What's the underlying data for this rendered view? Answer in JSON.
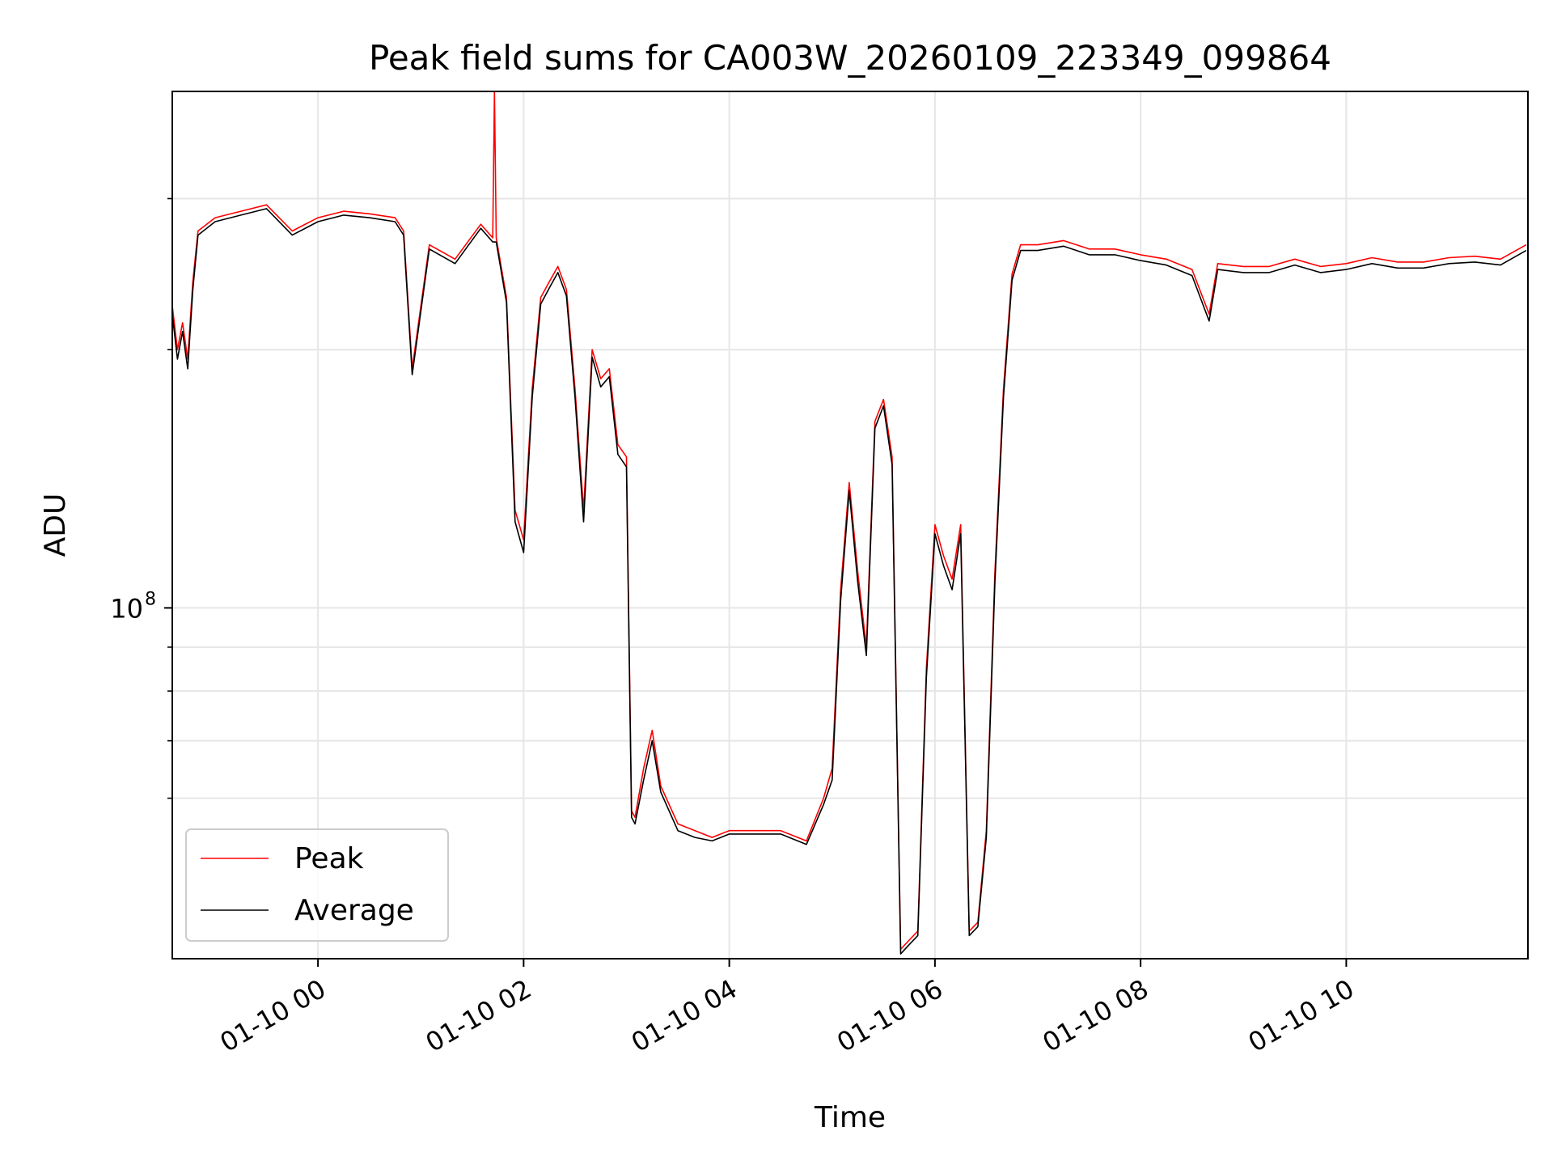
{
  "chart_data": {
    "type": "line",
    "title": "Peak field sums for CA003W_20260109_223349_099864",
    "xlabel": "Time",
    "ylabel": "ADU",
    "y_scale": "log",
    "ylim": [
      39000000,
      400000000
    ],
    "xlim": [
      "01-09 22:35",
      "01-10 11:46"
    ],
    "x_ticks": [
      "01-10 00",
      "01-10 02",
      "01-10 04",
      "01-10 06",
      "01-10 08",
      "01-10 10"
    ],
    "y_major_ticks": [
      {
        "value": 100000000,
        "label_base": "10",
        "label_exp": "8"
      }
    ],
    "y_minor_ticks": [
      60000000,
      70000000,
      80000000,
      90000000,
      200000000,
      300000000
    ],
    "grid": true,
    "legend_position": "lower-left",
    "series": [
      {
        "name": "Peak",
        "color": "#ff0000",
        "x": [
          "01-09 22:35",
          "01-09 22:38",
          "01-09 22:41",
          "01-09 22:44",
          "01-09 22:47",
          "01-09 22:50",
          "01-09 23:00",
          "01-09 23:15",
          "01-09 23:30",
          "01-09 23:45",
          "01-10 00:00",
          "01-10 00:15",
          "01-10 00:30",
          "01-10 00:45",
          "01-10 00:50",
          "01-10 00:55",
          "01-10 01:05",
          "01-10 01:20",
          "01-10 01:35",
          "01-10 01:42",
          "01-10 01:43",
          "01-10 01:44",
          "01-10 01:50",
          "01-10 01:55",
          "01-10 02:00",
          "01-10 02:05",
          "01-10 02:10",
          "01-10 02:15",
          "01-10 02:20",
          "01-10 02:25",
          "01-10 02:30",
          "01-10 02:35",
          "01-10 02:40",
          "01-10 02:45",
          "01-10 02:50",
          "01-10 02:55",
          "01-10 03:00",
          "01-10 03:03",
          "01-10 03:05",
          "01-10 03:10",
          "01-10 03:15",
          "01-10 03:20",
          "01-10 03:30",
          "01-10 03:40",
          "01-10 03:50",
          "01-10 04:00",
          "01-10 04:15",
          "01-10 04:30",
          "01-10 04:45",
          "01-10 04:55",
          "01-10 05:00",
          "01-10 05:05",
          "01-10 05:10",
          "01-10 05:15",
          "01-10 05:20",
          "01-10 05:25",
          "01-10 05:30",
          "01-10 05:35",
          "01-10 05:40",
          "01-10 05:45",
          "01-10 05:50",
          "01-10 05:55",
          "01-10 06:00",
          "01-10 06:05",
          "01-10 06:10",
          "01-10 06:15",
          "01-10 06:20",
          "01-10 06:25",
          "01-10 06:30",
          "01-10 06:35",
          "01-10 06:40",
          "01-10 06:45",
          "01-10 06:50",
          "01-10 07:00",
          "01-10 07:15",
          "01-10 07:30",
          "01-10 07:45",
          "01-10 08:00",
          "01-10 08:15",
          "01-10 08:30",
          "01-10 08:40",
          "01-10 08:45",
          "01-10 09:00",
          "01-10 09:15",
          "01-10 09:30",
          "01-10 09:45",
          "01-10 10:00",
          "01-10 10:15",
          "01-10 10:30",
          "01-10 10:45",
          "01-10 11:00",
          "01-10 11:15",
          "01-10 11:30",
          "01-10 11:45"
        ],
        "y": [
          225000000,
          200000000,
          215000000,
          195000000,
          240000000,
          275000000,
          285000000,
          290000000,
          295000000,
          275000000,
          285000000,
          290000000,
          288000000,
          285000000,
          275000000,
          190000000,
          265000000,
          255000000,
          280000000,
          270000000,
          400000000,
          270000000,
          230000000,
          130000000,
          120000000,
          180000000,
          230000000,
          240000000,
          250000000,
          235000000,
          180000000,
          130000000,
          200000000,
          185000000,
          190000000,
          155000000,
          150000000,
          58000000,
          57000000,
          65000000,
          72000000,
          62000000,
          56000000,
          55000000,
          54000000,
          55000000,
          55000000,
          55000000,
          53500000,
          60000000,
          65000000,
          105000000,
          140000000,
          110000000,
          90000000,
          165000000,
          175000000,
          150000000,
          40000000,
          41000000,
          42000000,
          85000000,
          125000000,
          115000000,
          108000000,
          125000000,
          42000000,
          43000000,
          55000000,
          110000000,
          180000000,
          245000000,
          265000000,
          265000000,
          268000000,
          262000000,
          262000000,
          258000000,
          255000000,
          248000000,
          220000000,
          252000000,
          250000000,
          250000000,
          255000000,
          250000000,
          252000000,
          256000000,
          253000000,
          253000000,
          256000000,
          257000000,
          255000000,
          265000000
        ]
      },
      {
        "name": "Average",
        "color": "#000000",
        "x": [
          "01-09 22:35",
          "01-09 22:38",
          "01-09 22:41",
          "01-09 22:44",
          "01-09 22:47",
          "01-09 22:50",
          "01-09 23:00",
          "01-09 23:15",
          "01-09 23:30",
          "01-09 23:45",
          "01-10 00:00",
          "01-10 00:15",
          "01-10 00:30",
          "01-10 00:45",
          "01-10 00:50",
          "01-10 00:55",
          "01-10 01:05",
          "01-10 01:20",
          "01-10 01:35",
          "01-10 01:42",
          "01-10 01:43",
          "01-10 01:44",
          "01-10 01:50",
          "01-10 01:55",
          "01-10 02:00",
          "01-10 02:05",
          "01-10 02:10",
          "01-10 02:15",
          "01-10 02:20",
          "01-10 02:25",
          "01-10 02:30",
          "01-10 02:35",
          "01-10 02:40",
          "01-10 02:45",
          "01-10 02:50",
          "01-10 02:55",
          "01-10 03:00",
          "01-10 03:03",
          "01-10 03:05",
          "01-10 03:10",
          "01-10 03:15",
          "01-10 03:20",
          "01-10 03:30",
          "01-10 03:40",
          "01-10 03:50",
          "01-10 04:00",
          "01-10 04:15",
          "01-10 04:30",
          "01-10 04:45",
          "01-10 04:55",
          "01-10 05:00",
          "01-10 05:05",
          "01-10 05:10",
          "01-10 05:15",
          "01-10 05:20",
          "01-10 05:25",
          "01-10 05:30",
          "01-10 05:35",
          "01-10 05:40",
          "01-10 05:45",
          "01-10 05:50",
          "01-10 05:55",
          "01-10 06:00",
          "01-10 06:05",
          "01-10 06:10",
          "01-10 06:15",
          "01-10 06:20",
          "01-10 06:25",
          "01-10 06:30",
          "01-10 06:35",
          "01-10 06:40",
          "01-10 06:45",
          "01-10 06:50",
          "01-10 07:00",
          "01-10 07:15",
          "01-10 07:30",
          "01-10 07:45",
          "01-10 08:00",
          "01-10 08:15",
          "01-10 08:30",
          "01-10 08:40",
          "01-10 08:45",
          "01-10 09:00",
          "01-10 09:15",
          "01-10 09:30",
          "01-10 09:45",
          "01-10 10:00",
          "01-10 10:15",
          "01-10 10:30",
          "01-10 10:45",
          "01-10 11:00",
          "01-10 11:15",
          "01-10 11:30",
          "01-10 11:45"
        ],
        "y": [
          220000000,
          195000000,
          210000000,
          190000000,
          235000000,
          272000000,
          282000000,
          287000000,
          292000000,
          272000000,
          282000000,
          287000000,
          285000000,
          282000000,
          272000000,
          187000000,
          262000000,
          252000000,
          277000000,
          267000000,
          267000000,
          267000000,
          227000000,
          126000000,
          116000000,
          176000000,
          226000000,
          236000000,
          246000000,
          231000000,
          176000000,
          126000000,
          196000000,
          181000000,
          186000000,
          151000000,
          146000000,
          57000000,
          56000000,
          63000000,
          70000000,
          61000000,
          55000000,
          54000000,
          53500000,
          54500000,
          54500000,
          54500000,
          53000000,
          59000000,
          63000000,
          102000000,
          137000000,
          107000000,
          88000000,
          162000000,
          172000000,
          147000000,
          39500000,
          40500000,
          41500000,
          83000000,
          122000000,
          112000000,
          105000000,
          122000000,
          41500000,
          42500000,
          54000000,
          107000000,
          176000000,
          241000000,
          261000000,
          261000000,
          264000000,
          258000000,
          258000000,
          254000000,
          251000000,
          244000000,
          216000000,
          248000000,
          246000000,
          246000000,
          251000000,
          246000000,
          248000000,
          252000000,
          249000000,
          249000000,
          252000000,
          253000000,
          251000000,
          261000000
        ]
      }
    ]
  }
}
